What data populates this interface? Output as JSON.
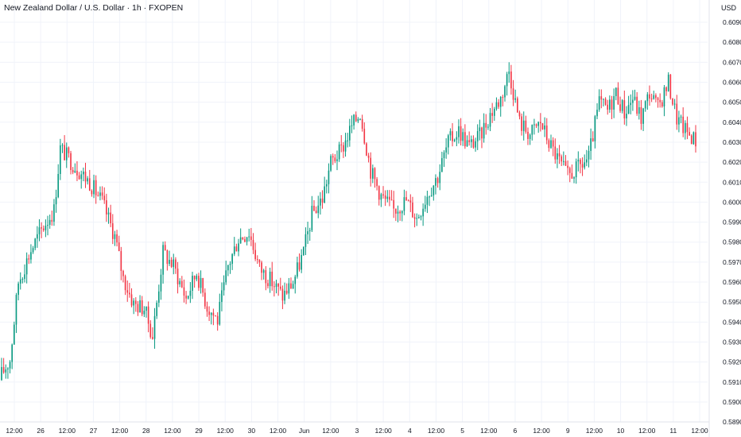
{
  "chart_data": {
    "type": "candlestick",
    "title": "New Zealand Dollar / U.S. Dollar · 1h · FXOPEN",
    "currency": "USD",
    "ylim": [
      0.59,
      0.609
    ],
    "y_ticks": [
      "0.60900",
      "0.60800",
      "0.60700",
      "0.60600",
      "0.60500",
      "0.60400",
      "0.60300",
      "0.60200",
      "0.60100",
      "0.60000",
      "0.59900",
      "0.59800",
      "0.59700",
      "0.59600",
      "0.59500",
      "0.59400",
      "0.59300",
      "0.59200",
      "0.59100",
      "0.59000",
      "0.58900"
    ],
    "x_ticks": [
      "12:00",
      "26",
      "12:00",
      "27",
      "12:00",
      "28",
      "12:00",
      "29",
      "12:00",
      "30",
      "12:00",
      "Jun",
      "12:00",
      "3",
      "12:00",
      "4",
      "12:00",
      "5",
      "12:00",
      "6",
      "12:00",
      "9",
      "12:00",
      "10",
      "12:00",
      "11",
      "12:00"
    ],
    "grid": true,
    "colors": {
      "up": "#089981",
      "down": "#f23645",
      "grid": "#f0f3fa",
      "text": "#131722",
      "axis_border": "#e0e3eb"
    },
    "approx_path": [
      [
        0,
        0.5914
      ],
      [
        4,
        0.5921
      ],
      [
        8,
        0.596
      ],
      [
        14,
        0.5976
      ],
      [
        20,
        0.5988
      ],
      [
        25,
        0.5996
      ],
      [
        28,
        0.6027
      ],
      [
        35,
        0.6018
      ],
      [
        42,
        0.601
      ],
      [
        48,
        0.6
      ],
      [
        54,
        0.5983
      ],
      [
        58,
        0.5962
      ],
      [
        63,
        0.5949
      ],
      [
        68,
        0.5947
      ],
      [
        72,
        0.5933
      ],
      [
        77,
        0.5975
      ],
      [
        82,
        0.5968
      ],
      [
        88,
        0.5952
      ],
      [
        93,
        0.5965
      ],
      [
        98,
        0.5948
      ],
      [
        103,
        0.5941
      ],
      [
        108,
        0.5968
      ],
      [
        113,
        0.5982
      ],
      [
        118,
        0.5985
      ],
      [
        123,
        0.5967
      ],
      [
        129,
        0.596
      ],
      [
        134,
        0.5953
      ],
      [
        139,
        0.596
      ],
      [
        144,
        0.5975
      ],
      [
        148,
        0.5994
      ],
      [
        153,
        0.6002
      ],
      [
        157,
        0.602
      ],
      [
        162,
        0.6026
      ],
      [
        167,
        0.6038
      ],
      [
        171,
        0.6045
      ],
      [
        176,
        0.6016
      ],
      [
        181,
        0.6003
      ],
      [
        187,
        0.5996
      ],
      [
        193,
        0.6001
      ],
      [
        198,
        0.5992
      ],
      [
        203,
        0.6004
      ],
      [
        208,
        0.6013
      ],
      [
        213,
        0.603
      ],
      [
        218,
        0.6036
      ],
      [
        223,
        0.6028
      ],
      [
        228,
        0.6033
      ],
      [
        233,
        0.6044
      ],
      [
        238,
        0.6052
      ],
      [
        242,
        0.6066
      ],
      [
        247,
        0.604
      ],
      [
        252,
        0.6034
      ],
      [
        257,
        0.604
      ],
      [
        261,
        0.603
      ],
      [
        265,
        0.6022
      ],
      [
        270,
        0.6013
      ],
      [
        275,
        0.6017
      ],
      [
        280,
        0.6022
      ],
      [
        285,
        0.605
      ],
      [
        289,
        0.6046
      ],
      [
        293,
        0.6055
      ],
      [
        297,
        0.6045
      ],
      [
        301,
        0.6052
      ],
      [
        305,
        0.6042
      ],
      [
        309,
        0.6055
      ],
      [
        313,
        0.6047
      ],
      [
        318,
        0.606
      ],
      [
        322,
        0.6042
      ],
      [
        326,
        0.6036
      ],
      [
        331,
        0.6031
      ]
    ]
  }
}
